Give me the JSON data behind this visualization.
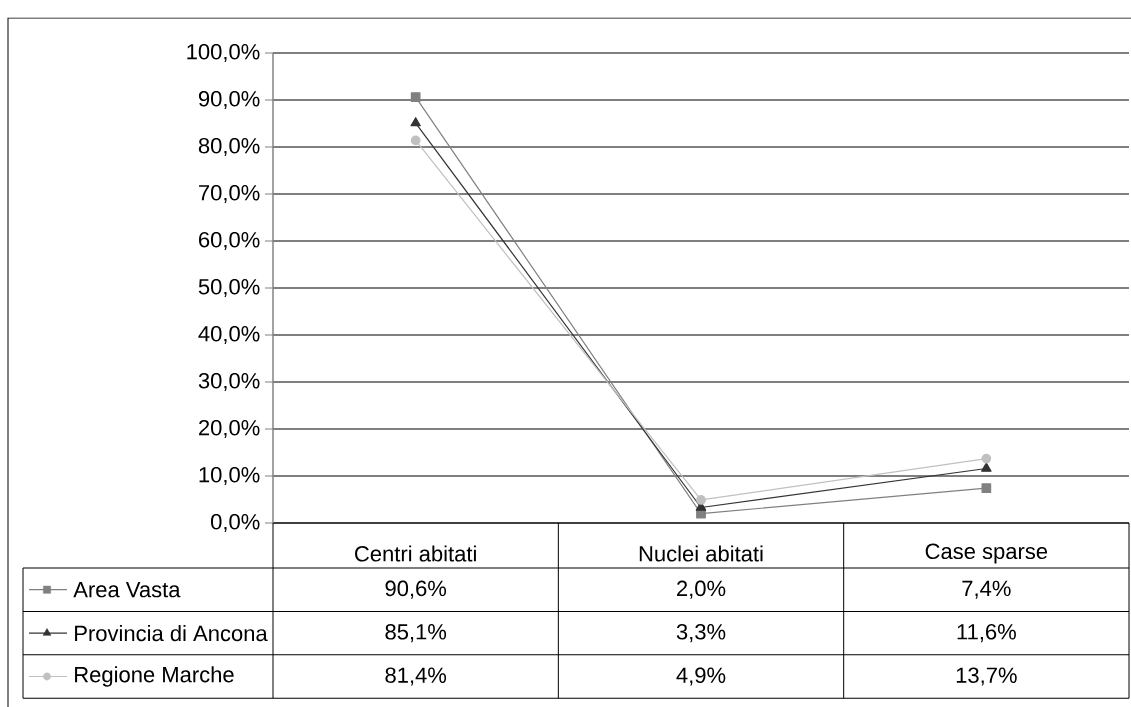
{
  "chart_data": {
    "type": "line",
    "categories": [
      "Centri abitati",
      "Nuclei abitati",
      "Case sparse"
    ],
    "series": [
      {
        "name": "Area Vasta",
        "color": "#808080",
        "marker": "square",
        "values": [
          90.6,
          2.0,
          7.4
        ],
        "value_labels": [
          "90,6%",
          "2,0%",
          "7,4%"
        ]
      },
      {
        "name": "Provincia di Ancona",
        "color": "#333333",
        "marker": "triangle",
        "values": [
          85.1,
          3.3,
          11.6
        ],
        "value_labels": [
          "85,1%",
          "3,3%",
          "11,6%"
        ]
      },
      {
        "name": "Regione Marche",
        "color": "#c0c0c0",
        "marker": "circle",
        "values": [
          81.4,
          4.9,
          13.7
        ],
        "value_labels": [
          "81,4%",
          "4,9%",
          "13,7%"
        ]
      }
    ],
    "ylim": [
      0,
      100
    ],
    "yticks": [
      {
        "value": 0,
        "label": "0,0%"
      },
      {
        "value": 10,
        "label": "10,0%"
      },
      {
        "value": 20,
        "label": "20,0%"
      },
      {
        "value": 30,
        "label": "30,0%"
      },
      {
        "value": 40,
        "label": "40,0%"
      },
      {
        "value": 50,
        "label": "50,0%"
      },
      {
        "value": 60,
        "label": "60,0%"
      },
      {
        "value": 70,
        "label": "70,0%"
      },
      {
        "value": 80,
        "label": "80,0%"
      },
      {
        "value": 90,
        "label": "90,0%"
      },
      {
        "value": 100,
        "label": "100,0%"
      }
    ],
    "grid": "y",
    "legend": "bottom left",
    "line_style": "solid"
  }
}
